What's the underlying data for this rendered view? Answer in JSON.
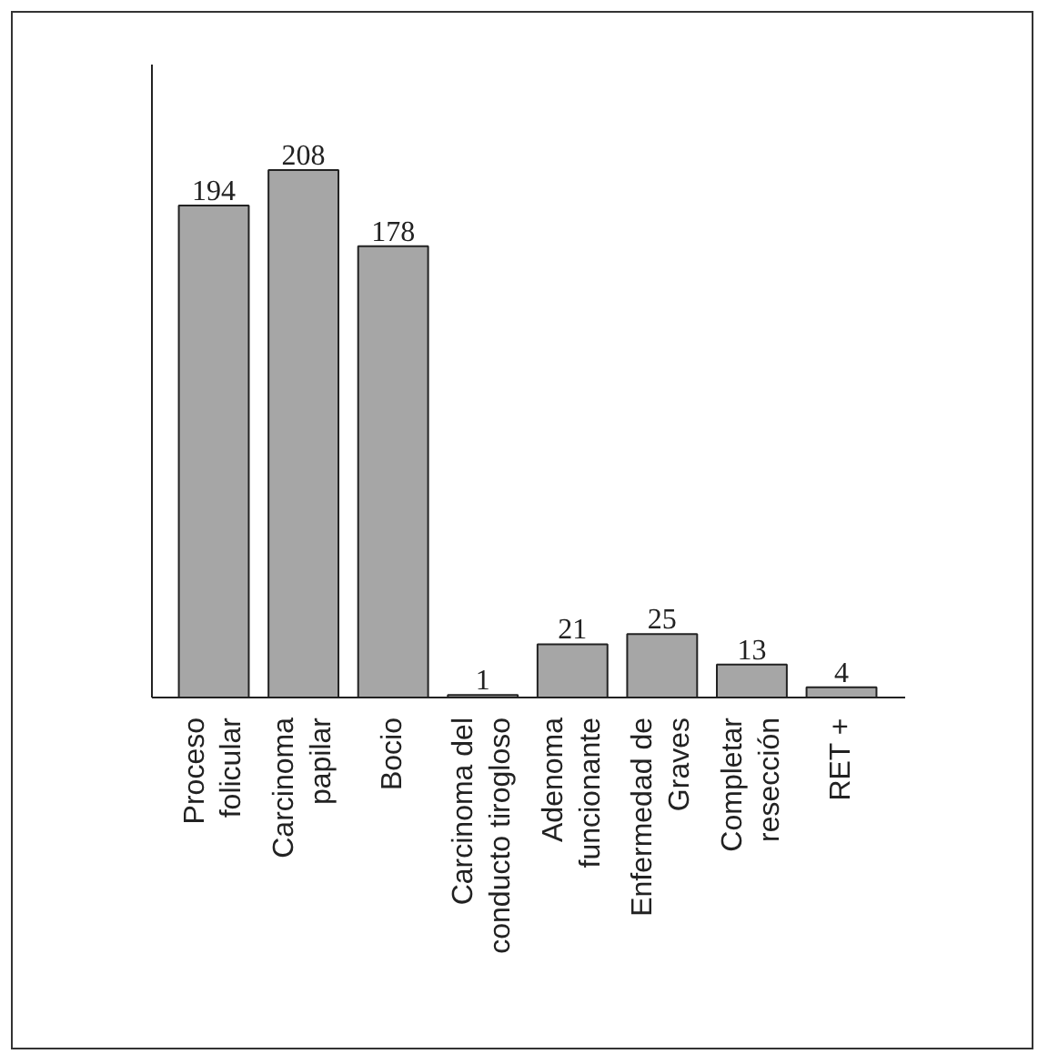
{
  "chart_data": {
    "type": "bar",
    "categories": [
      "Proceso\nfolicular",
      "Carcinoma\npapilar",
      "Bocio",
      "Carcinoma del\nconducto tirogloso",
      "Adenoma\nfuncionante",
      "Enfermedad de\nGraves",
      "Completar\nresección",
      "RET +"
    ],
    "values": [
      194,
      208,
      178,
      1,
      21,
      25,
      13,
      4
    ],
    "color": "#a6a6a6",
    "data_labels": true
  }
}
